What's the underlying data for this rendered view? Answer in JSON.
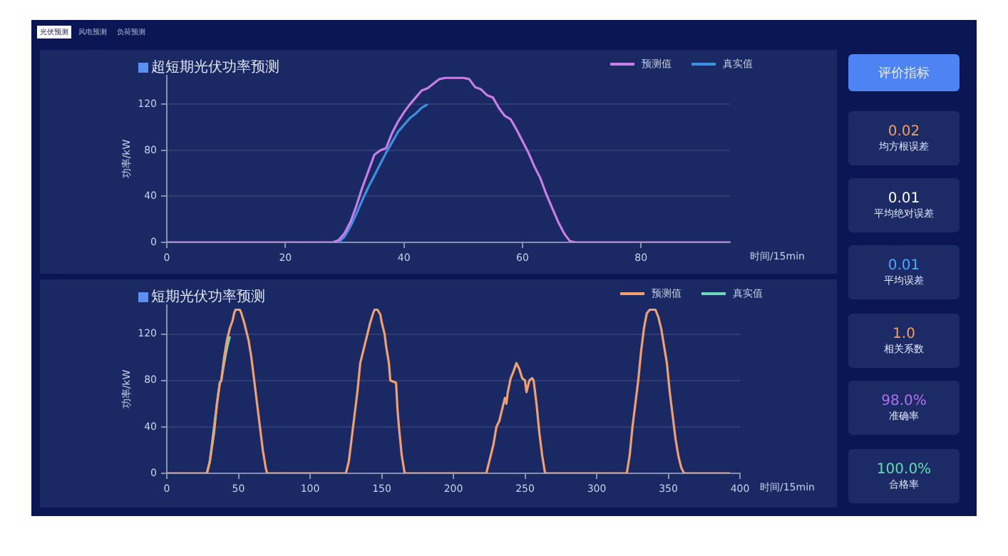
{
  "chart_data": [
    {
      "type": "line",
      "title": "超短期光伏功率预测",
      "ylabel": "功率/kW",
      "xlabel": "时间/15min",
      "xlim": [
        0,
        95
      ],
      "xticks": [
        0,
        20,
        40,
        60,
        80
      ],
      "ylim": [
        0,
        145
      ],
      "yticks": [
        0,
        40,
        80,
        120
      ],
      "grid": "y",
      "legend": "top right",
      "marker": "none",
      "line_style": "solid",
      "x": [
        0,
        1,
        2,
        3,
        4,
        5,
        6,
        7,
        8,
        9,
        10,
        11,
        12,
        13,
        14,
        15,
        16,
        17,
        18,
        19,
        20,
        21,
        22,
        23,
        24,
        25,
        26,
        27,
        28,
        29,
        30,
        31,
        32,
        33,
        34,
        35,
        36,
        37,
        38,
        39,
        40,
        41,
        42,
        43,
        44,
        45,
        46,
        47,
        48,
        49,
        50,
        51,
        52,
        53,
        54,
        55,
        56,
        57,
        58,
        59,
        60,
        61,
        62,
        63,
        64,
        65,
        66,
        67,
        68,
        69,
        70,
        71,
        72,
        73,
        74,
        75,
        76,
        77,
        78,
        79,
        80,
        81,
        82,
        83,
        84,
        85,
        86,
        87,
        88,
        89,
        90,
        91,
        92,
        93,
        94,
        95
      ],
      "series": [
        {
          "name": "预测值",
          "color": "#c77ee6",
          "values": [
            0,
            0,
            0,
            0,
            0,
            0,
            0,
            0,
            0,
            0,
            0,
            0,
            0,
            0,
            0,
            0,
            0,
            0,
            0,
            0,
            0,
            0,
            0,
            0,
            0,
            0,
            0,
            0,
            0,
            2,
            8,
            18,
            32,
            48,
            62,
            76,
            80,
            82,
            95,
            105,
            113,
            120,
            126,
            132,
            134,
            138,
            142,
            143,
            143,
            143,
            143,
            142,
            135,
            133,
            128,
            126,
            117,
            110,
            107,
            98,
            88,
            78,
            66,
            56,
            42,
            30,
            18,
            8,
            1,
            0,
            0,
            0,
            0,
            0,
            0,
            0,
            0,
            0,
            0,
            0,
            0,
            0,
            0,
            0,
            0,
            0,
            0,
            0,
            0,
            0,
            0,
            0,
            0,
            0,
            0,
            0
          ]
        },
        {
          "name": "真实值",
          "color": "#3d8fe0",
          "values": [
            null,
            null,
            null,
            null,
            null,
            null,
            null,
            null,
            null,
            null,
            null,
            null,
            null,
            null,
            null,
            null,
            null,
            null,
            null,
            null,
            null,
            null,
            null,
            null,
            null,
            null,
            null,
            null,
            0,
            0,
            5,
            14,
            25,
            37,
            48,
            58,
            68,
            78,
            87,
            96,
            102,
            108,
            112,
            117,
            120,
            null,
            null,
            null,
            null,
            null,
            null,
            null,
            null,
            null,
            null,
            null,
            null,
            null,
            null,
            null,
            null,
            null,
            null,
            null,
            null,
            null,
            null,
            null,
            null,
            null,
            null,
            null,
            null,
            null,
            null,
            null,
            null,
            null,
            null,
            null,
            null,
            null,
            null,
            null,
            null,
            null,
            null,
            null,
            null,
            null,
            null,
            null,
            null,
            null,
            null,
            null
          ]
        }
      ]
    },
    {
      "type": "line",
      "title": "短期光伏功率预测",
      "ylabel": "功率/kW",
      "xlabel": "时间/15min",
      "xlim": [
        0,
        400
      ],
      "xticks": [
        0,
        50,
        100,
        150,
        200,
        250,
        300,
        350,
        400
      ],
      "ylim": [
        0,
        145
      ],
      "yticks": [
        0,
        40,
        80,
        120
      ],
      "grid": "y",
      "legend": "top right",
      "marker": "none",
      "line_style": "solid",
      "series": [
        {
          "name": "预测值",
          "color": "#f0a070",
          "x": [
            0,
            28,
            30,
            33,
            35,
            37,
            38,
            40,
            42,
            44,
            46,
            47,
            48,
            51,
            52,
            54,
            55,
            57,
            59,
            61,
            63,
            65,
            67,
            69,
            70,
            125,
            127,
            129,
            131,
            133,
            135,
            136,
            138,
            140,
            142,
            144,
            145,
            147,
            149,
            150,
            152,
            153,
            155,
            156,
            160,
            161,
            162,
            164,
            166,
            223,
            225,
            228,
            230,
            232,
            234,
            236,
            237,
            238,
            240,
            242,
            244,
            246,
            248,
            250,
            251,
            253,
            255,
            256,
            258,
            260,
            262,
            264,
            321,
            323,
            325,
            327,
            329,
            331,
            333,
            335,
            337,
            341,
            343,
            345,
            347,
            349,
            351,
            353,
            355,
            357,
            359,
            361,
            393
          ],
          "values": [
            0,
            0,
            10,
            35,
            60,
            78,
            80,
            100,
            115,
            125,
            132,
            138,
            141,
            141,
            138,
            130,
            125,
            115,
            100,
            80,
            60,
            40,
            20,
            5,
            0,
            0,
            10,
            30,
            50,
            70,
            95,
            100,
            110,
            120,
            130,
            138,
            141,
            141,
            137,
            130,
            120,
            110,
            95,
            80,
            78,
            55,
            40,
            15,
            0,
            0,
            10,
            25,
            40,
            45,
            55,
            65,
            60,
            70,
            82,
            88,
            95,
            90,
            82,
            80,
            70,
            80,
            82,
            80,
            60,
            35,
            15,
            0,
            0,
            15,
            40,
            60,
            80,
            105,
            125,
            138,
            141,
            141,
            135,
            125,
            110,
            95,
            70,
            50,
            30,
            15,
            5,
            0,
            0
          ]
        },
        {
          "name": "真实值",
          "color": "#6fd6c0",
          "x": [
            28,
            30,
            33,
            35,
            37,
            38,
            40,
            42,
            44
          ],
          "values": [
            0,
            10,
            40,
            60,
            78,
            80,
            95,
            108,
            118
          ]
        }
      ]
    },
    {
      "type": "other",
      "title": "评价指标",
      "categories": [
        "均方根误差",
        "平均绝对误差",
        "平均误差",
        "相关系数",
        "准确率",
        "合格率"
      ],
      "value_labels": [
        "0.02",
        "0.01",
        "0.01",
        "1.0",
        "98.0%",
        "100.0%"
      ],
      "annotations": [
        "光伏预测",
        "风电预测",
        "负荷预测"
      ]
    }
  ]
}
